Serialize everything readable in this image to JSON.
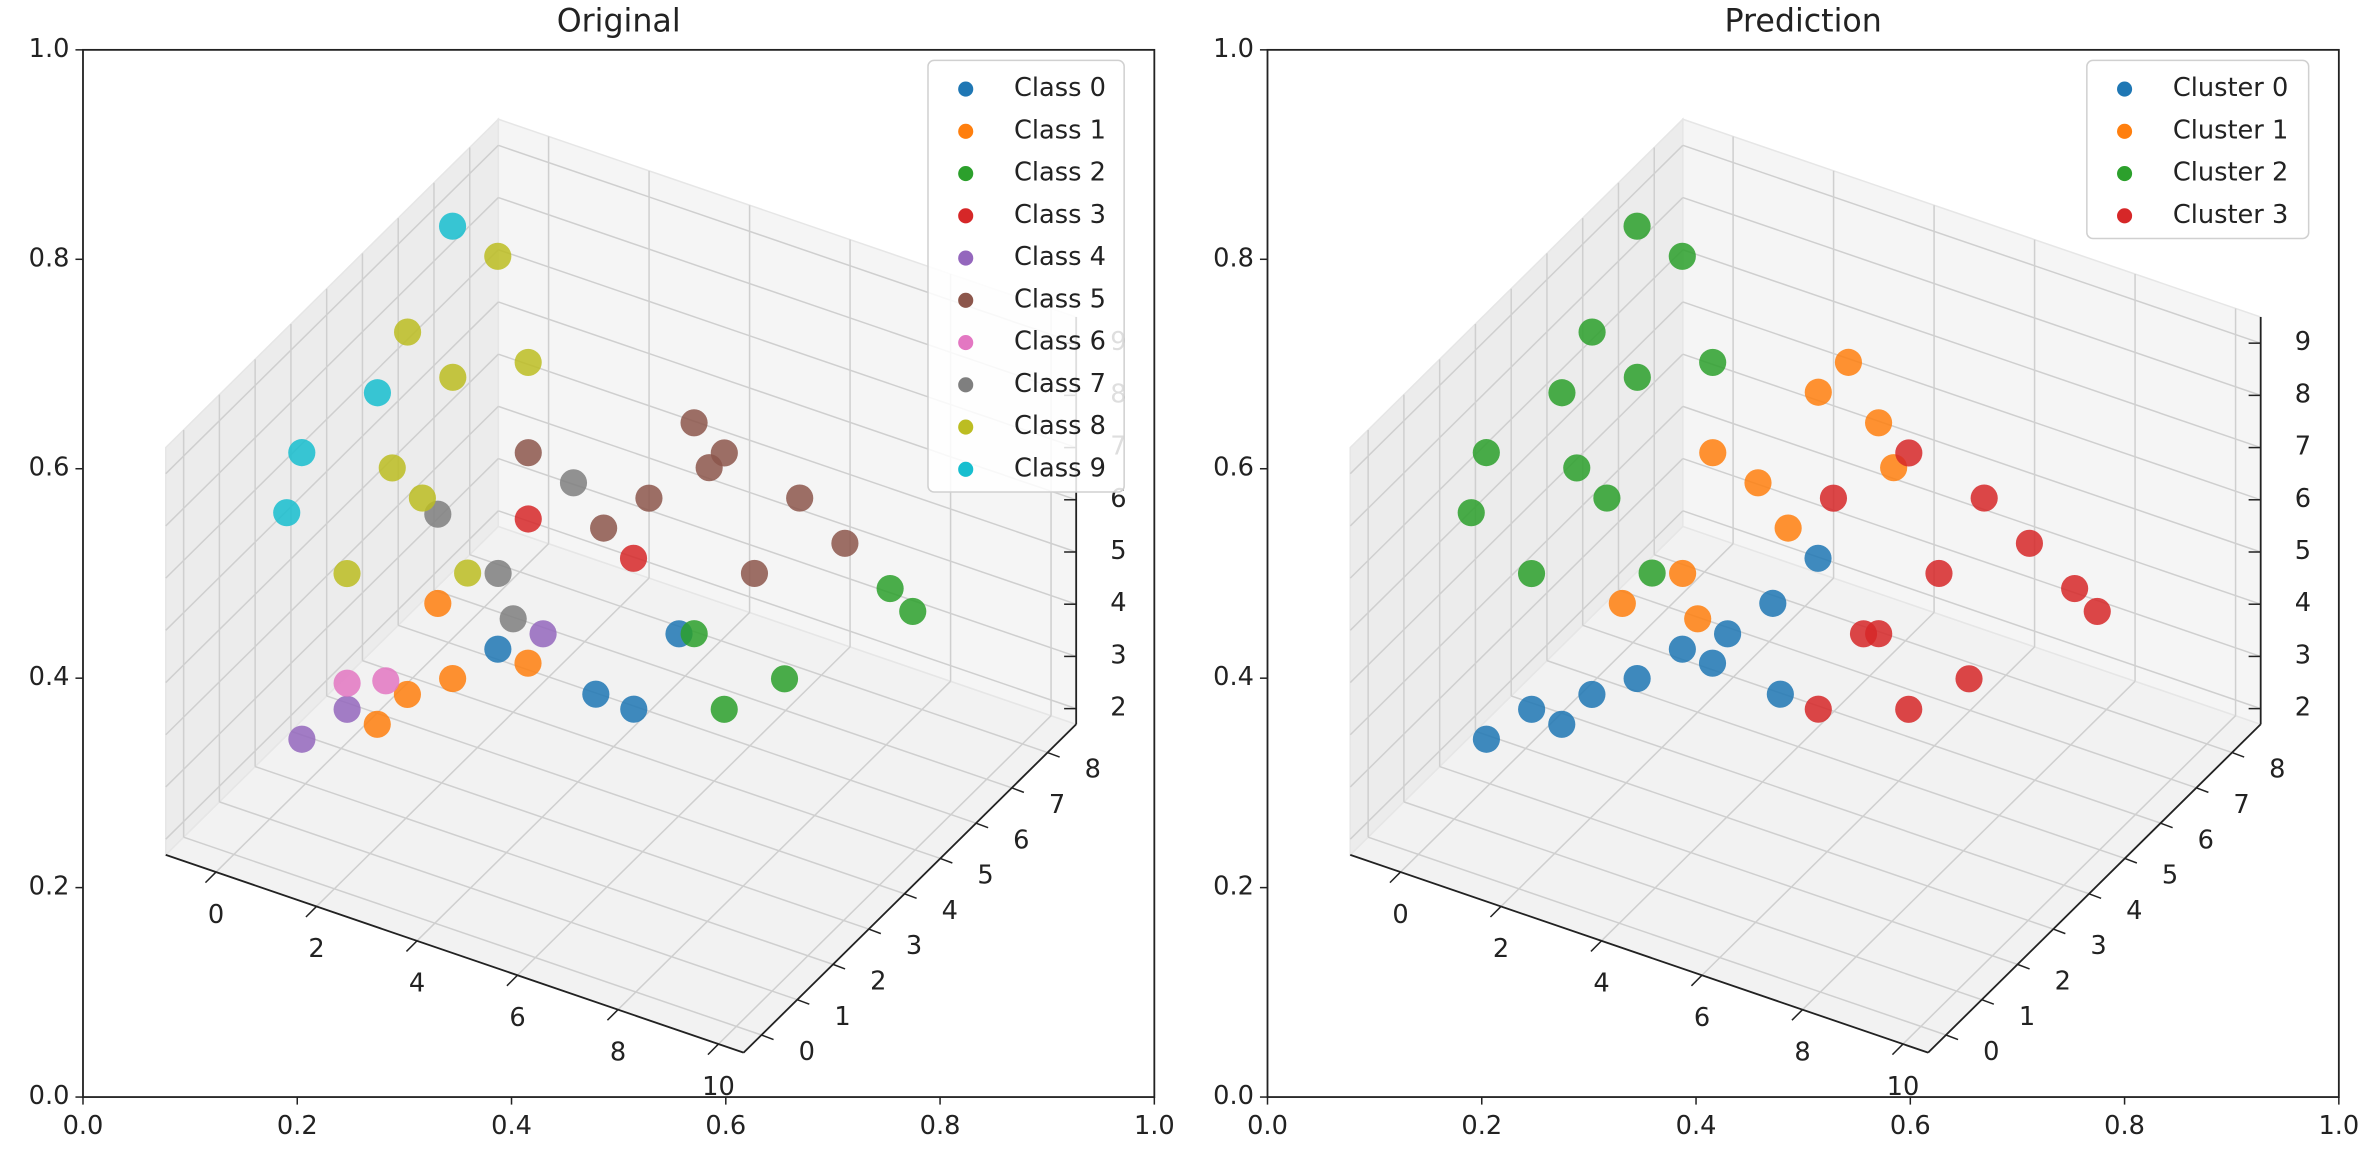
{
  "chart_data": [
    {
      "type": "scatter3d",
      "title": "Original",
      "xlim": [
        0,
        1
      ],
      "ylim": [
        0,
        1
      ],
      "xticks": [
        {
          "value": 0,
          "label": "0.0"
        },
        0.2,
        0.4,
        0.6,
        0.8,
        {
          "value": 1,
          "label": "1.0"
        }
      ],
      "yticks": [
        {
          "value": 0,
          "label": "0.0"
        },
        0.2,
        0.4,
        0.6,
        0.8,
        {
          "value": 1,
          "label": "1.0"
        }
      ],
      "xlim_3d": [
        -1,
        10.5
      ],
      "ylim_3d": [
        -0.5,
        8.8
      ],
      "zlim_3d": [
        1.7,
        9.5
      ],
      "xticks_3d": [
        0,
        2,
        4,
        6,
        8,
        10
      ],
      "yticks_3d": [
        0,
        1,
        2,
        3,
        4,
        5,
        6,
        7,
        8
      ],
      "zticks_3d": [
        2,
        3,
        4,
        5,
        6,
        7,
        8,
        9
      ],
      "legend": "upper right",
      "series": [
        {
          "name": "Class 0",
          "color": "#1f77b4",
          "x": [
            4.4,
            5.3,
            5.78,
            3.83
          ],
          "y": [
            5,
            5,
            2,
            2
          ],
          "z": [
            2.55,
            4.29,
            5.32,
            5.54
          ]
        },
        {
          "name": "Class 1",
          "color": "#ff7f0e",
          "x": [
            1.43,
            2.03,
            2.93,
            4.43,
            0.5
          ],
          "y": [
            2,
            2,
            2,
            2,
            5
          ],
          "z": [
            3.31,
            4.08,
            4.68,
            5.47,
            3.29
          ]
        },
        {
          "name": "Class 2",
          "color": "#2ca02c",
          "x": [
            8.79,
            9.24,
            6.2,
            7.4,
            4.89
          ],
          "y": [
            6,
            6,
            5,
            5,
            6
          ],
          "z": [
            5.63,
            5.34,
            3.14,
            4.12,
            3.48
          ]
        },
        {
          "name": "Class 3",
          "color": "#d62728",
          "x": [
            2.3,
            6.53
          ],
          "y": [
            5,
            2
          ],
          "z": [
            5.5,
            8.17
          ]
        },
        {
          "name": "Class 4",
          "color": "#9467bd",
          "x": [
            -0.07,
            0.83,
            4.73
          ],
          "y": [
            2,
            2,
            2
          ],
          "z": [
            2.53,
            3.4,
            6.13
          ]
        },
        {
          "name": "Class 5",
          "color": "#8c564b",
          "x": [
            3.8,
            2.3,
            5.6,
            5.9,
            3.99,
            5.49,
            6.99,
            7.89,
            6.09
          ],
          "y": [
            5,
            5,
            5,
            5,
            6,
            6,
            6,
            6,
            6
          ],
          "z": [
            5.82,
            6.77,
            8.43,
            7.67,
            5.78,
            7.14,
            6.77,
            6.2,
            5.03
          ]
        },
        {
          "name": "Class 6",
          "color": "#e377c2",
          "x": [
            0.83,
            1.6
          ],
          "y": [
            2,
            2
          ],
          "z": [
            3.9,
            4.2
          ]
        },
        {
          "name": "Class 7",
          "color": "#7f7f7f",
          "x": [
            2.0,
            1.7,
            3.2,
            0.5
          ],
          "y": [
            5,
            5,
            5,
            5
          ],
          "z": [
            3.49,
            4.26,
            6.49,
            5.0
          ]
        },
        {
          "name": "Class 8",
          "color": "#bcbd22",
          "x": [
            0.27,
            0.61,
            1.51,
            1.54,
            3.04,
            3.94,
            3.01,
            2.44
          ],
          "y": [
            7,
            4,
            4,
            1,
            1,
            1,
            4,
            1
          ],
          "z": [
            8.51,
            9.2,
            8.63,
            6.91,
            8.85,
            7.71,
            9.41,
            9.23
          ]
        },
        {
          "name": "Class 9",
          "color": "#17becf",
          "x": [
            -0.63,
            0.01,
            0.34,
            0.64
          ],
          "y": [
            7,
            4,
            1,
            1
          ],
          "z": [
            8.79,
            7.84,
            7.68,
            8.93
          ]
        }
      ]
    },
    {
      "type": "scatter3d",
      "title": "Prediction",
      "xlim": [
        0,
        1
      ],
      "ylim": [
        0,
        1
      ],
      "xticks": [
        {
          "value": 0,
          "label": "0.0"
        },
        0.2,
        0.4,
        0.6,
        0.8,
        {
          "value": 1,
          "label": "1.0"
        }
      ],
      "yticks": [
        {
          "value": 0,
          "label": "0.0"
        },
        0.2,
        0.4,
        0.6,
        0.8,
        {
          "value": 1,
          "label": "1.0"
        }
      ],
      "xlim_3d": [
        -1,
        10.5
      ],
      "ylim_3d": [
        -0.5,
        8.8
      ],
      "zlim_3d": [
        1.7,
        9.5
      ],
      "xticks_3d": [
        0,
        2,
        4,
        6,
        8,
        10
      ],
      "yticks_3d": [
        0,
        1,
        2,
        3,
        4,
        5,
        6,
        7,
        8
      ],
      "zticks_3d": [
        2,
        3,
        4,
        5,
        6,
        7,
        8,
        9
      ],
      "legend": "upper right",
      "series": [
        {
          "name": "Cluster 0",
          "color": "#1f77b4",
          "x": [
            -0.07,
            0.83,
            2.03,
            2.93,
            3.83,
            4.73,
            5.63,
            6.53,
            1.43,
            4.43,
            5.78
          ],
          "y": [
            2,
            2,
            2,
            2,
            2,
            2,
            2,
            2,
            2,
            2,
            2
          ],
          "z": [
            2.53,
            3.4,
            4.08,
            4.68,
            5.54,
            6.13,
            7.01,
            8.17,
            3.31,
            5.47,
            5.32
          ]
        },
        {
          "name": "Cluster 1",
          "color": "#ff7f0e",
          "x": [
            0.5,
            1.7,
            3.2,
            4.4,
            5.0,
            5.6,
            3.8,
            2.3,
            2.0,
            5.9
          ],
          "y": [
            5,
            5,
            5,
            5,
            5,
            5,
            5,
            5,
            5,
            5
          ],
          "z": [
            3.29,
            4.26,
            6.49,
            8.62,
            9.39,
            8.43,
            5.82,
            6.77,
            3.49,
            7.67
          ]
        },
        {
          "name": "Cluster 2",
          "color": "#2ca02c",
          "x": [
            -0.63,
            0.27,
            0.61,
            0.01,
            1.51,
            3.01,
            0.34,
            0.64,
            1.54,
            3.04,
            3.94,
            2.44
          ],
          "y": [
            7,
            7,
            4,
            4,
            4,
            4,
            1,
            1,
            1,
            1,
            1,
            1
          ],
          "z": [
            8.79,
            8.51,
            9.2,
            7.84,
            8.63,
            9.41,
            7.68,
            8.93,
            6.91,
            8.85,
            7.71,
            9.23
          ]
        },
        {
          "name": "Cluster 3",
          "color": "#d62728",
          "x": [
            4.4,
            6.2,
            7.4,
            5.3,
            3.99,
            5.49,
            6.99,
            7.89,
            8.79,
            9.24,
            6.09,
            4.89
          ],
          "y": [
            5,
            5,
            5,
            5,
            6,
            6,
            6,
            6,
            6,
            6,
            6,
            6
          ],
          "z": [
            2.55,
            3.14,
            4.12,
            4.29,
            5.78,
            7.14,
            6.77,
            6.2,
            5.63,
            5.34,
            5.03,
            3.48
          ]
        }
      ]
    }
  ]
}
